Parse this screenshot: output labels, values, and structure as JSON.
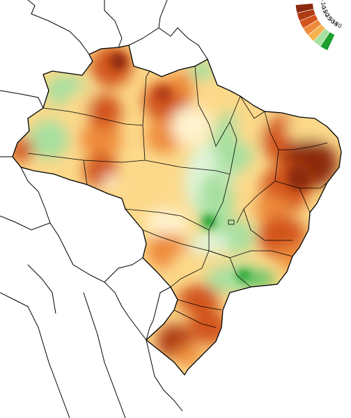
{
  "map": {
    "region": "Brazil",
    "background_color": "#ffffff",
    "border_color": "#000000",
    "palette": {
      "dark_red": "#8c2a10",
      "red_orange": "#d2551e",
      "orange": "#ee8b3a",
      "light_orange": "#f6b24e",
      "yellow": "#fcd98a",
      "pale_yellow": "#fff3cf",
      "pale_green": "#dff4d9",
      "light_green": "#a7e0a0",
      "green": "#59c25f",
      "dark_green": "#1c9e2c"
    }
  },
  "legend": {
    "position": "top-right",
    "labels": [
      "-40",
      "-35",
      "-30",
      "-25",
      "-20",
      "-15",
      "-10"
    ],
    "colors": [
      "#1c9e2c",
      "#a7e0a0",
      "#f6b24e",
      "#ee8b3a",
      "#d2551e",
      "#b03c16",
      "#8c2a10"
    ]
  }
}
